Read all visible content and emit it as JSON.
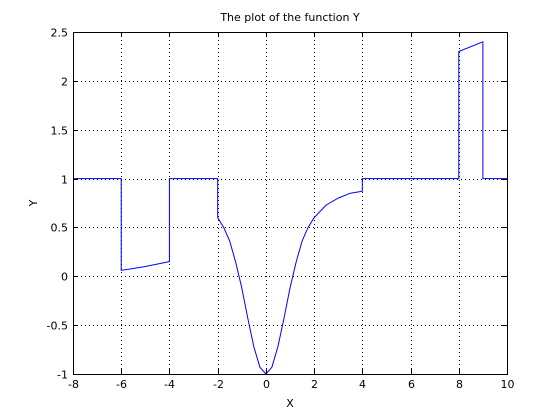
{
  "chart_data": {
    "type": "line",
    "title": "The plot of the function Y",
    "xlabel": "X",
    "ylabel": "Y",
    "xlim": [
      -8,
      10
    ],
    "ylim": [
      -1,
      2.5
    ],
    "grid": true,
    "line_color": "#0000ff",
    "xticks": [
      -8,
      -6,
      -4,
      -2,
      0,
      2,
      4,
      6,
      8,
      10
    ],
    "yticks": [
      -1,
      -0.5,
      0,
      0.5,
      1,
      1.5,
      2,
      2.5
    ],
    "xtick_labels": [
      "-8",
      "-6",
      "-4",
      "-2",
      "0",
      "2",
      "4",
      "6",
      "8",
      "10"
    ],
    "ytick_labels": [
      "-1",
      "-0.5",
      "0",
      "0.5",
      "1",
      "1.5",
      "2",
      "2.5"
    ],
    "series": [
      {
        "x": [
          -8,
          -6,
          -6,
          -5,
          -4,
          -4,
          -2,
          -2,
          -1.75,
          -1.5,
          -1.25,
          -1,
          -0.75,
          -0.5,
          -0.25,
          0,
          0.25,
          0.5,
          0.75,
          1,
          1.25,
          1.5,
          1.75,
          2,
          2.5,
          3,
          3.5,
          4,
          4,
          8,
          8,
          9,
          9,
          10
        ],
        "y": [
          1,
          1,
          0.06,
          0.1,
          0.15,
          1,
          1,
          0.6,
          0.5,
          0.36,
          0.14,
          -0.12,
          -0.43,
          -0.72,
          -0.93,
          -1,
          -0.93,
          -0.72,
          -0.43,
          -0.12,
          0.14,
          0.36,
          0.5,
          0.6,
          0.73,
          0.8,
          0.85,
          0.87,
          1,
          1,
          2.3,
          2.4,
          1,
          1
        ]
      }
    ]
  }
}
